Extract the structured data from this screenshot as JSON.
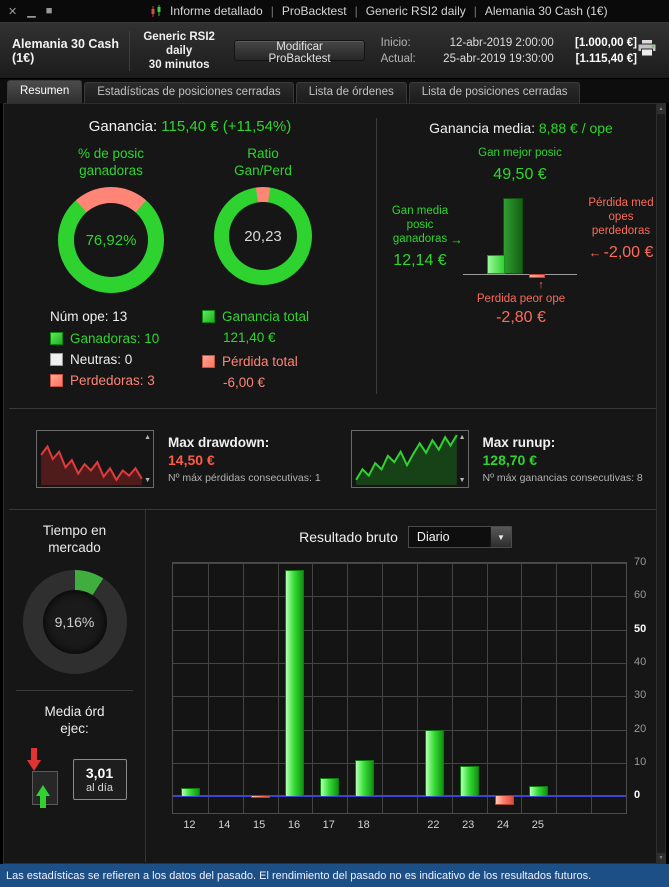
{
  "colors": {
    "green": "#2ed52e",
    "salmon": "#ff8576",
    "red_text": "#ff6a5a",
    "bar_green": "#39e039",
    "bar_red": "#ff7c68",
    "zero_line_blue": "#3947d0",
    "statusbar_blue": "#1c4f86",
    "panel_background": "#161616"
  },
  "icons": {
    "close": "✕",
    "minimize": "▁",
    "maximize": "■",
    "dropdown_arrow": "▼",
    "up_triangle": "▲",
    "down_triangle": "▼",
    "arrow_right": "→",
    "arrow_left": "←",
    "arrow_up": "↑"
  },
  "titlebar": {
    "separator": "|",
    "items": [
      "Informe detallado",
      "ProBacktest",
      "Generic RSI2 daily",
      "Alemania 30 Cash (1€)"
    ]
  },
  "header": {
    "instrument": "Alemania 30 Cash (1€)",
    "strategy": "Generic RSI2 daily",
    "timeframe": "30 minutos",
    "modify_button": "Modificar ProBacktest",
    "inicio_label": "Inicio:",
    "inicio_datetime": "12-abr-2019 2:00:00",
    "inicio_amount": "[1.000,00 €]",
    "actual_label": "Actual:",
    "actual_datetime": "25-abr-2019 19:30:00",
    "actual_amount": "[1.115,40 €]"
  },
  "tabs": [
    {
      "label": "Resumen",
      "active": true
    },
    {
      "label": "Estadísticas de posiciones cerradas",
      "active": false
    },
    {
      "label": "Lista de órdenes",
      "active": false
    },
    {
      "label": "Lista de posiciones cerradas",
      "active": false
    }
  ],
  "resumen": {
    "ganancia_label": "Ganancia:",
    "ganancia_value": "115,40 € (+11,54%)",
    "winners_title": "% de posic ganadoras",
    "winners_value": "76,92%",
    "ratio_title": "Ratio Gan/Perd",
    "ratio_value": "20,23",
    "num_ope": "Núm ope: 13",
    "legend_ganadoras": "Ganadoras: 10",
    "legend_neutras": "Neutras: 0",
    "legend_perdedoras": "Perdedoras: 3",
    "ganancia_total_label": "Ganancia total",
    "ganancia_total_value": "121,40 €",
    "perdida_total_label": "Pérdida total",
    "perdida_total_value": "-6,00 €",
    "media_label": "Ganancia media:",
    "media_value": "8,88 € / ope",
    "best_label": "Gan mejor posic",
    "best_value": "49,50 €",
    "avg_win_label": "Gan media posic ganadoras",
    "avg_win_value": "12,14 €",
    "avg_loss_label": "Pérdida med opes perdedoras",
    "avg_loss_value": "-2,00 €",
    "worst_label": "Perdida peor ope",
    "worst_value": "-2,80 €"
  },
  "drawdown": {
    "label": "Max drawdown:",
    "value": "14,50 €",
    "sub": "Nº máx pérdidas consecutivas: 1"
  },
  "runup": {
    "label": "Max runup:",
    "value": "128,70 €",
    "sub": "Nº máx ganancias consecutivas: 8"
  },
  "tiempo": {
    "title": "Tiempo en mercado",
    "value": "9,16%"
  },
  "media_ord": {
    "title": "Media órd ejec:",
    "value": "3,01",
    "unit": "al día"
  },
  "resultado": {
    "title": "Resultado bruto",
    "periodo": "Diario"
  },
  "statusbar": {
    "text": "Las estadísticas se refieren a los datos del pasado. El rendimiento del pasado no es indicativo de los resultados futuros."
  },
  "chart_data": [
    {
      "id": "pct-posic-ganadoras",
      "type": "pie",
      "donut": true,
      "title": "% de posic ganadoras",
      "center_label": "76,92%",
      "rotation_deg": 41.6,
      "slices": [
        {
          "label": "ganadoras",
          "value": 76.92,
          "color": "#2fd32f"
        },
        {
          "label": "perdedoras",
          "value": 23.08,
          "color": "#ff8576"
        }
      ]
    },
    {
      "id": "ratio-gan-perd",
      "type": "pie",
      "donut": true,
      "title": "Ratio Gan/Perd",
      "center_label": "20,23",
      "rotation_deg": 8.5,
      "slices": [
        {
          "label": "ganancia",
          "value": 95.29,
          "color": "#2fd32f"
        },
        {
          "label": "pérdida",
          "value": 4.71,
          "color": "#ff8576"
        }
      ]
    },
    {
      "id": "ganancia-media-ops",
      "type": "bar",
      "title": "Ganancia media: 8,88 € / ope",
      "categories": [
        "Gan mejor posic",
        "Gan media posic ganadoras",
        "Pérdida med opes perdedoras"
      ],
      "values": [
        49.5,
        12.14,
        -2.0
      ],
      "unit": "€"
    },
    {
      "id": "max-drawdown-spark",
      "type": "line",
      "title": "Max drawdown",
      "color": "#e23b3b",
      "fill": "rgba(190,40,40,0.35)",
      "points": [
        [
          2,
          58
        ],
        [
          8,
          74
        ],
        [
          13,
          50
        ],
        [
          19,
          64
        ],
        [
          25,
          34
        ],
        [
          31,
          48
        ],
        [
          37,
          22
        ],
        [
          43,
          40
        ],
        [
          49,
          28
        ],
        [
          55,
          44
        ],
        [
          61,
          16
        ],
        [
          67,
          32
        ],
        [
          73,
          10
        ],
        [
          79,
          28
        ],
        [
          85,
          18
        ],
        [
          91,
          32
        ],
        [
          97,
          12
        ]
      ]
    },
    {
      "id": "max-runup-spark",
      "type": "line",
      "title": "Max runup",
      "color": "#2fd32f",
      "fill": "rgba(30,150,30,0.35)",
      "points": [
        [
          2,
          10
        ],
        [
          8,
          30
        ],
        [
          14,
          18
        ],
        [
          20,
          42
        ],
        [
          26,
          30
        ],
        [
          32,
          56
        ],
        [
          38,
          44
        ],
        [
          44,
          64
        ],
        [
          50,
          38
        ],
        [
          56,
          60
        ],
        [
          62,
          80
        ],
        [
          68,
          62
        ],
        [
          74,
          86
        ],
        [
          80,
          68
        ],
        [
          86,
          92
        ],
        [
          91,
          76
        ],
        [
          97,
          96
        ]
      ]
    },
    {
      "id": "tiempo-en-mercado",
      "type": "pie",
      "donut": true,
      "title": "Tiempo en mercado",
      "center_label": "9,16%",
      "rotation_deg": 0,
      "slices": [
        {
          "label": "en mercado",
          "value": 9.16,
          "color": "#3fae3f"
        },
        {
          "label": "fuera de mercado",
          "value": 90.84,
          "color": "#2f2f2f"
        }
      ]
    },
    {
      "id": "resultado-bruto",
      "type": "bar",
      "title": "Resultado bruto",
      "periodo": "Diario",
      "categories": [
        "12",
        "14",
        "15",
        "16",
        "17",
        "18",
        "",
        "22",
        "23",
        "24",
        "25",
        "",
        ""
      ],
      "values": [
        2.5,
        0,
        -0.5,
        68,
        5.5,
        11,
        0,
        20,
        9,
        -2.5,
        3,
        0,
        0
      ],
      "ylim": [
        -5,
        70
      ],
      "yticks": [
        0,
        10,
        20,
        30,
        40,
        50,
        60,
        70
      ],
      "ytick_bold": [
        0,
        50
      ],
      "xlabel": "",
      "ylabel": "",
      "unit": "€",
      "grid": true,
      "y_axis_position": "right"
    }
  ]
}
